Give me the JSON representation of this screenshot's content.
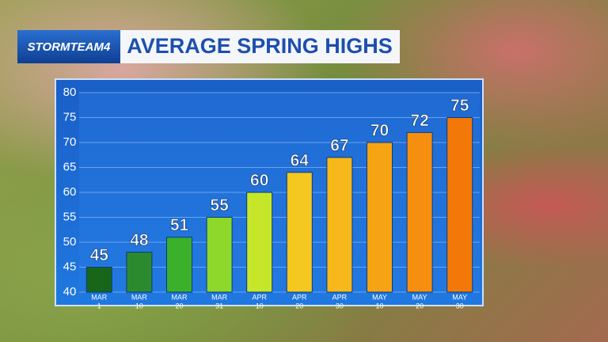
{
  "chart_data": {
    "type": "bar",
    "logo": "STORMTEAM4",
    "title": "AVERAGE SPRING HIGHS",
    "categories": [
      [
        "MAR",
        "1"
      ],
      [
        "MAR",
        "10"
      ],
      [
        "MAR",
        "20"
      ],
      [
        "MAR",
        "31"
      ],
      [
        "APR",
        "10"
      ],
      [
        "APR",
        "20"
      ],
      [
        "APR",
        "30"
      ],
      [
        "MAY",
        "10"
      ],
      [
        "MAY",
        "20"
      ],
      [
        "MAY",
        "30"
      ]
    ],
    "values": [
      45,
      48,
      51,
      55,
      60,
      64,
      67,
      70,
      72,
      75
    ],
    "colors": [
      "#17661a",
      "#2c8a2e",
      "#3bb02a",
      "#8ed82c",
      "#c6e62a",
      "#f4c81e",
      "#f6b81a",
      "#f7a414",
      "#f68f10",
      "#f2780a"
    ],
    "ylim": [
      40,
      80
    ],
    "yticks": [
      40,
      45,
      50,
      55,
      60,
      65,
      70,
      75,
      80
    ],
    "grid": true
  }
}
